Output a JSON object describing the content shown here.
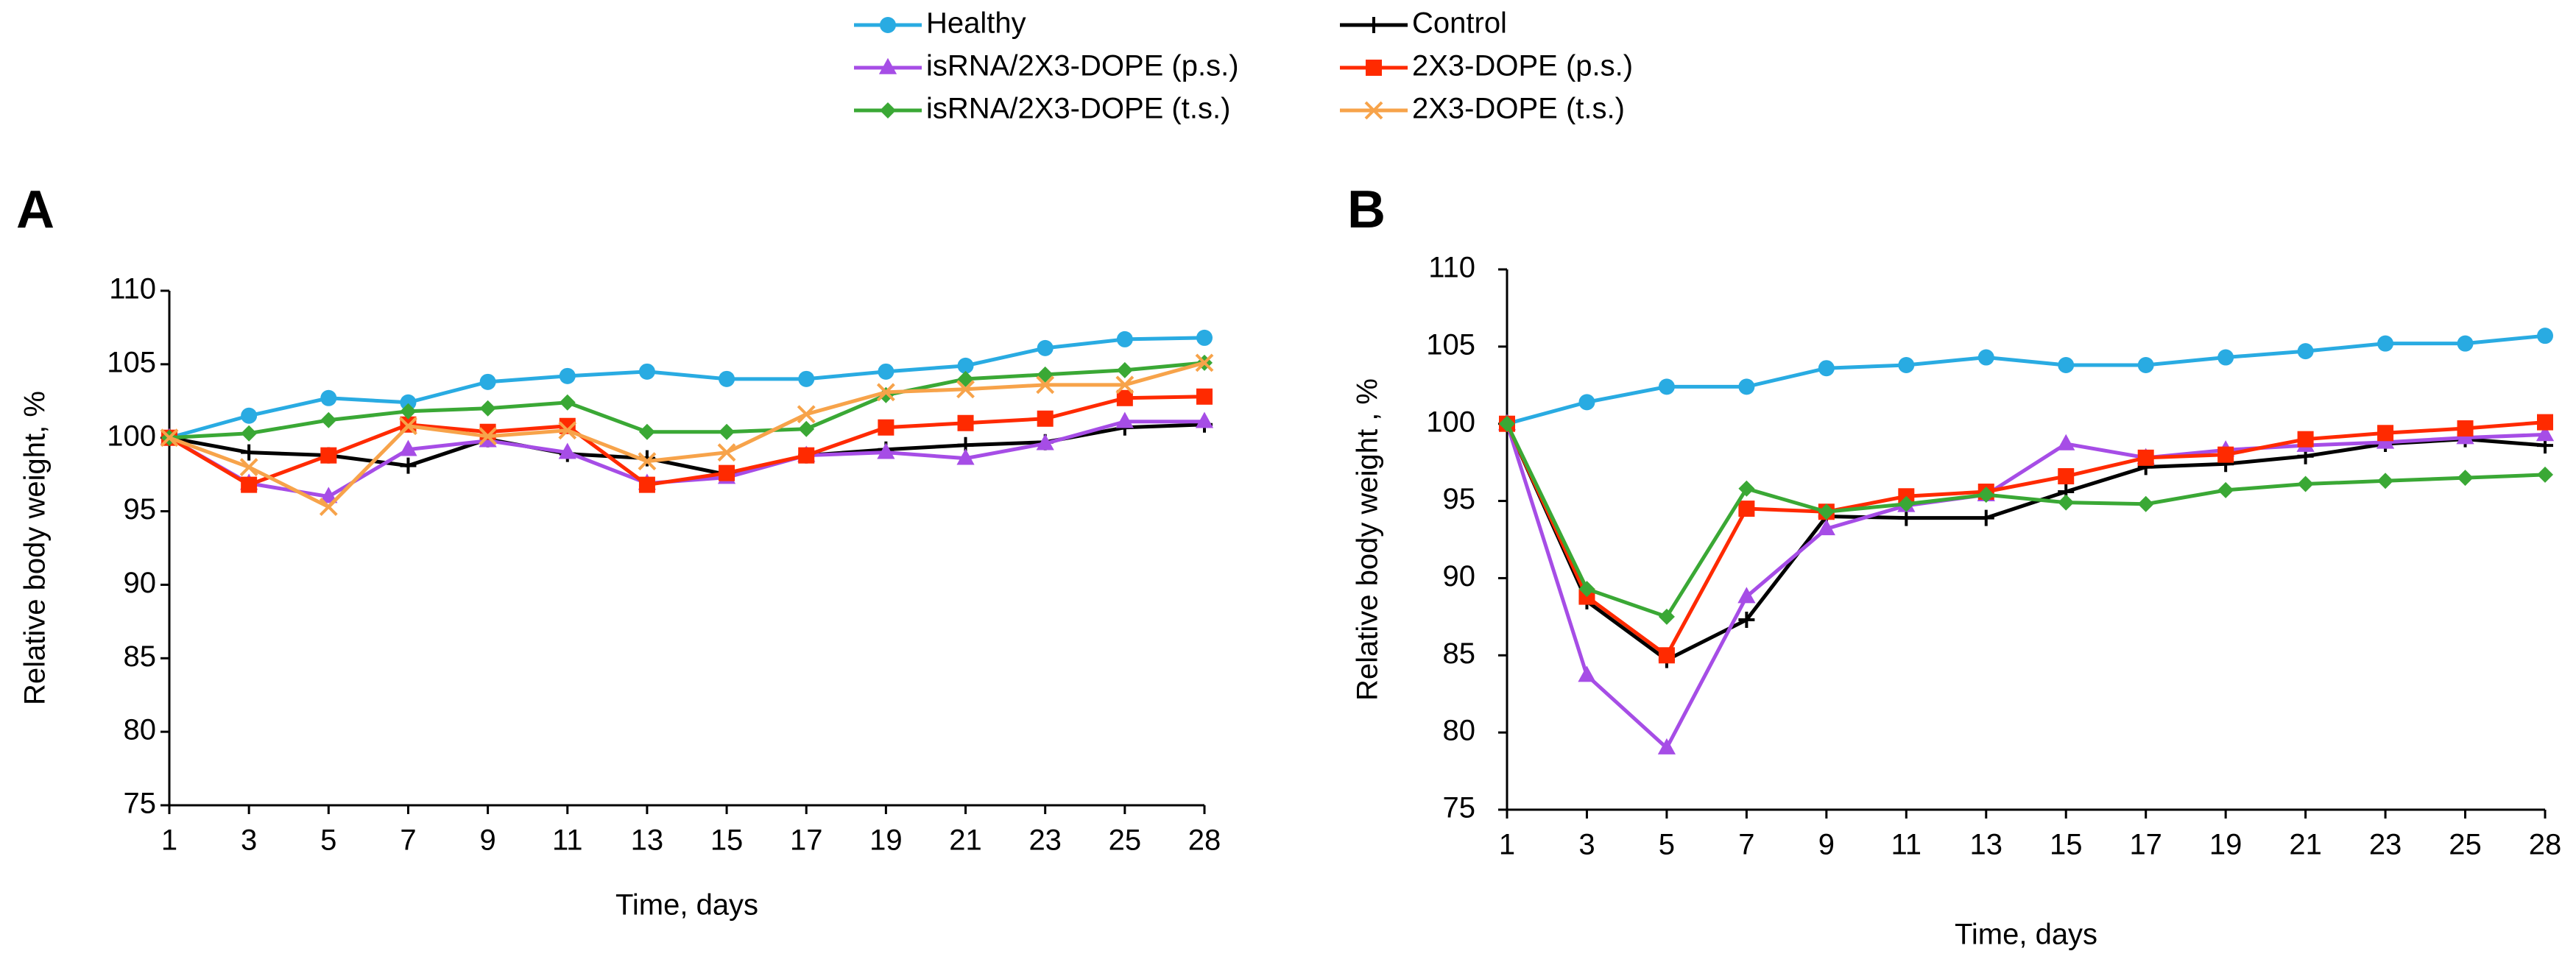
{
  "chart_data": [
    {
      "type": "line",
      "panel": "A",
      "ylabel": "Relative body weight, %",
      "xlabel": "Time, days",
      "categories": [
        1,
        3,
        5,
        7,
        9,
        11,
        13,
        15,
        17,
        19,
        21,
        23,
        25,
        28
      ],
      "ylim": [
        75,
        110
      ],
      "yticks": [
        75,
        80,
        85,
        90,
        95,
        100,
        105,
        110
      ],
      "grid": false,
      "series": [
        {
          "name": "Healthy",
          "color": "#29abe2",
          "marker": "circle",
          "values": [
            100,
            101.5,
            102.7,
            102.4,
            103.8,
            104.2,
            104.5,
            104.0,
            104.0,
            104.5,
            104.9,
            106.1,
            106.7,
            106.8
          ]
        },
        {
          "name": "Control",
          "color": "#000000",
          "marker": "plus",
          "values": [
            100,
            99.0,
            98.8,
            98.1,
            99.9,
            98.9,
            98.6,
            97.5,
            98.8,
            99.2,
            99.5,
            99.7,
            100.7,
            100.9
          ]
        },
        {
          "name": "isRNA/2X3-DOPE (p.s.)",
          "color": "#a64de6",
          "marker": "triangle",
          "values": [
            100,
            96.9,
            96.0,
            99.2,
            99.8,
            99.0,
            96.9,
            97.3,
            98.8,
            99.0,
            98.6,
            99.6,
            101.1,
            101.1
          ]
        },
        {
          "name": "2X3-DOPE (p.s.)",
          "color": "#ff2a00",
          "marker": "square",
          "values": [
            100,
            96.8,
            98.8,
            100.9,
            100.4,
            100.8,
            96.8,
            97.6,
            98.8,
            100.7,
            101.0,
            101.3,
            102.7,
            102.8
          ]
        },
        {
          "name": "isRNA/2X3-DOPE (t.s.)",
          "color": "#3aa835",
          "marker": "diamond",
          "values": [
            100,
            100.3,
            101.2,
            101.8,
            102.0,
            102.4,
            100.4,
            100.4,
            100.6,
            102.9,
            104.0,
            104.3,
            104.6,
            105.1
          ]
        },
        {
          "name": "2X3-DOPE (t.s.)",
          "color": "#f7a34a",
          "marker": "x",
          "values": [
            100,
            98.0,
            95.3,
            100.8,
            100.1,
            100.5,
            98.4,
            99.0,
            101.6,
            103.1,
            103.3,
            103.6,
            103.6,
            105.1
          ]
        }
      ]
    },
    {
      "type": "line",
      "panel": "B",
      "ylabel": "Relative body weight , %",
      "xlabel": "Time, days",
      "categories": [
        1,
        3,
        5,
        7,
        9,
        11,
        13,
        15,
        17,
        19,
        21,
        23,
        25,
        28
      ],
      "ylim": [
        75,
        110
      ],
      "yticks": [
        75,
        80,
        85,
        90,
        95,
        100,
        105,
        110
      ],
      "grid": false,
      "series": [
        {
          "values": [
            100,
            101.4,
            102.4,
            102.4,
            103.6,
            103.8,
            104.3,
            103.8,
            103.8,
            104.3,
            104.7,
            105.2,
            105.2,
            105.7
          ]
        },
        {
          "values": [
            100,
            88.5,
            84.7,
            87.3,
            94.0,
            93.9,
            93.9,
            95.6,
            97.2,
            97.4,
            97.9,
            98.7,
            99.0,
            98.6
          ]
        },
        {
          "values": [
            100,
            83.7,
            79.0,
            88.8,
            93.2,
            94.7,
            95.4,
            98.7,
            97.8,
            98.3,
            98.6,
            98.8,
            99.1,
            99.3
          ]
        },
        {
          "values": [
            100,
            88.8,
            85.0,
            94.5,
            94.3,
            95.3,
            95.6,
            96.6,
            97.8,
            98.0,
            99.0,
            99.4,
            99.7,
            100.1
          ]
        },
        {
          "values": [
            100,
            89.3,
            87.5,
            95.8,
            94.3,
            94.8,
            95.4,
            94.9,
            94.8,
            95.7,
            96.1,
            96.3,
            96.5,
            96.7
          ]
        }
      ]
    }
  ]
}
